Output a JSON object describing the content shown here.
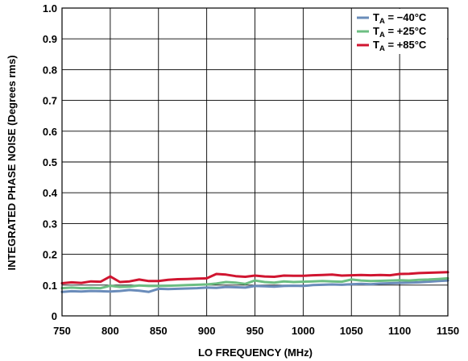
{
  "chart_data": {
    "type": "line",
    "title": "",
    "xlabel": "LO FREQUENCY (MHz)",
    "ylabel": "INTEGRATED PHASE NOISE (Degrees rms)",
    "xlim": [
      750,
      1150
    ],
    "ylim": [
      0,
      1.0
    ],
    "x_ticks": [
      "750",
      "800",
      "850",
      "900",
      "950",
      "1000",
      "1050",
      "1100",
      "1150"
    ],
    "y_ticks": [
      "0",
      "0.1",
      "0.2",
      "0.3",
      "0.4",
      "0.5",
      "0.6",
      "0.7",
      "0.8",
      "0.9",
      "1.0"
    ],
    "grid": true,
    "legend_position": "top-right",
    "x": [
      750,
      760,
      770,
      780,
      790,
      800,
      810,
      820,
      830,
      840,
      850,
      860,
      870,
      880,
      890,
      900,
      910,
      920,
      930,
      940,
      950,
      960,
      970,
      980,
      990,
      1000,
      1010,
      1020,
      1030,
      1040,
      1050,
      1060,
      1070,
      1080,
      1090,
      1100,
      1110,
      1120,
      1130,
      1140,
      1150
    ],
    "series": [
      {
        "name": "−40°C",
        "label_main": "T",
        "label_sub": "A",
        "label_rest": " = −40°C",
        "color": "#6a8cba",
        "values": [
          0.078,
          0.08,
          0.079,
          0.081,
          0.08,
          0.079,
          0.081,
          0.084,
          0.082,
          0.078,
          0.088,
          0.087,
          0.088,
          0.089,
          0.09,
          0.092,
          0.091,
          0.094,
          0.093,
          0.092,
          0.097,
          0.096,
          0.095,
          0.097,
          0.098,
          0.097,
          0.1,
          0.101,
          0.102,
          0.101,
          0.103,
          0.104,
          0.103,
          0.105,
          0.106,
          0.107,
          0.108,
          0.109,
          0.111,
          0.113,
          0.115
        ]
      },
      {
        "name": "+25°C",
        "label_main": "T",
        "label_sub": "A",
        "label_rest": " = +25°C",
        "color": "#6cbe82",
        "values": [
          0.09,
          0.092,
          0.09,
          0.091,
          0.09,
          0.098,
          0.094,
          0.095,
          0.099,
          0.097,
          0.097,
          0.098,
          0.099,
          0.1,
          0.101,
          0.102,
          0.105,
          0.11,
          0.108,
          0.104,
          0.115,
          0.11,
          0.108,
          0.112,
          0.11,
          0.111,
          0.112,
          0.113,
          0.112,
          0.111,
          0.118,
          0.115,
          0.113,
          0.114,
          0.115,
          0.116,
          0.115,
          0.117,
          0.118,
          0.12,
          0.122
        ]
      },
      {
        "name": "+85°C",
        "label_main": "T",
        "label_sub": "A",
        "label_rest": " = +85°C",
        "color": "#d01530",
        "values": [
          0.106,
          0.109,
          0.107,
          0.112,
          0.111,
          0.128,
          0.11,
          0.112,
          0.118,
          0.113,
          0.113,
          0.117,
          0.119,
          0.12,
          0.121,
          0.122,
          0.136,
          0.134,
          0.129,
          0.127,
          0.131,
          0.128,
          0.127,
          0.131,
          0.13,
          0.13,
          0.132,
          0.133,
          0.134,
          0.131,
          0.132,
          0.133,
          0.132,
          0.133,
          0.132,
          0.136,
          0.137,
          0.139,
          0.14,
          0.141,
          0.142
        ]
      }
    ]
  }
}
